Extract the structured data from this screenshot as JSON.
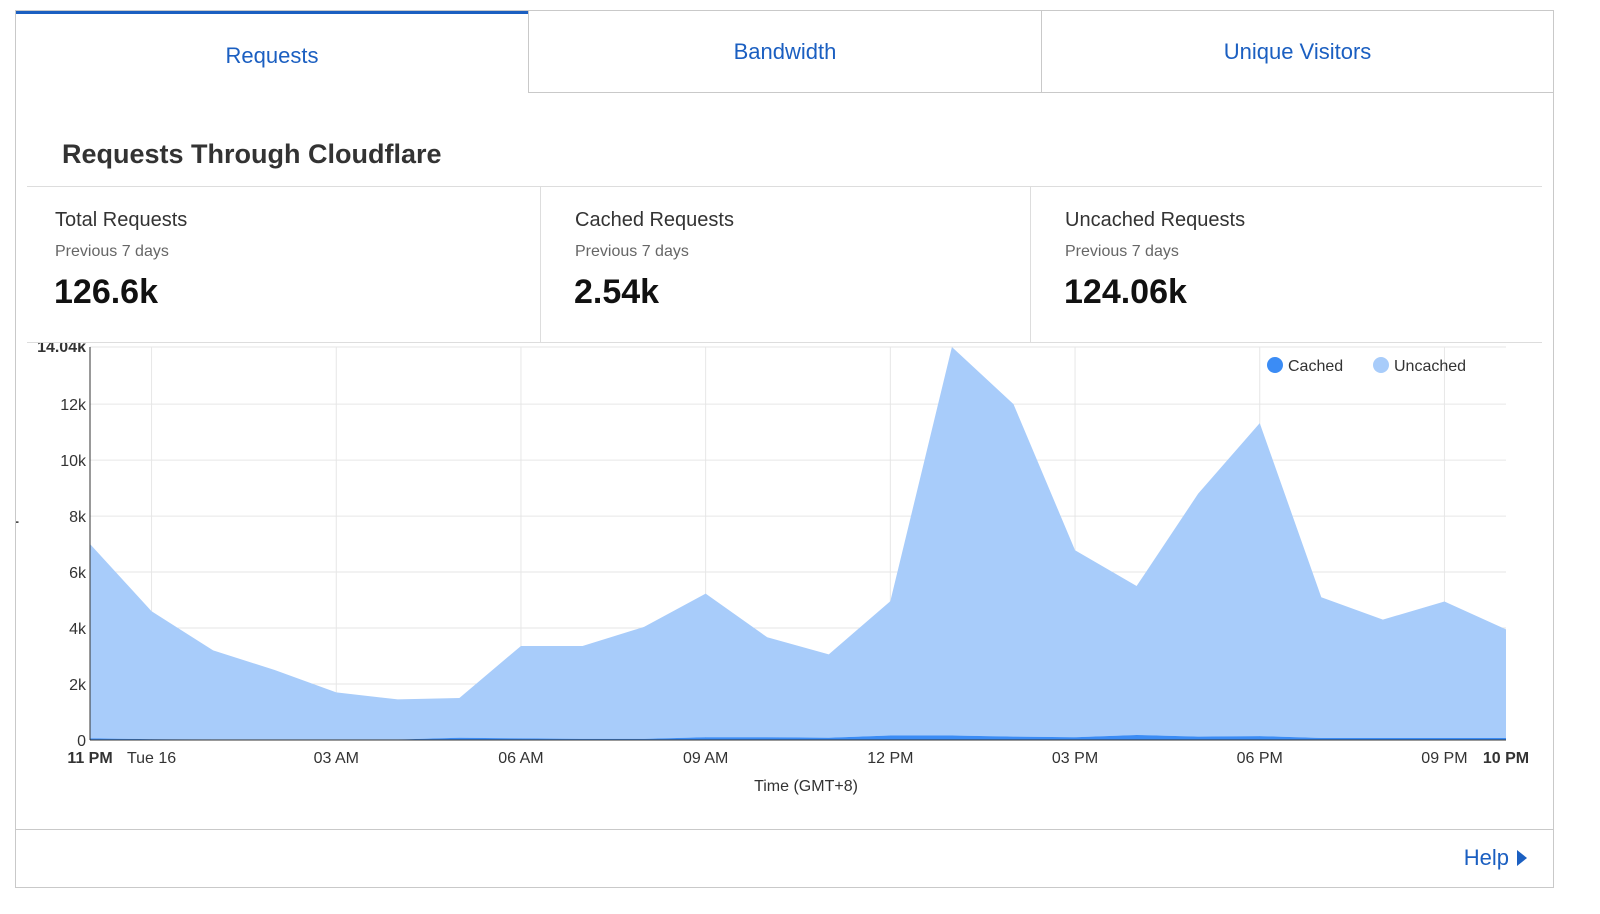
{
  "tabs": [
    {
      "label": "Requests"
    },
    {
      "label": "Bandwidth"
    },
    {
      "label": "Unique Visitors"
    }
  ],
  "heading": "Requests Through Cloudflare",
  "stats": [
    {
      "label": "Total Requests",
      "period": "Previous 7 days",
      "value": "126.6k"
    },
    {
      "label": "Cached Requests",
      "period": "Previous 7 days",
      "value": "2.54k"
    },
    {
      "label": "Uncached Requests",
      "period": "Previous 7 days",
      "value": "124.06k"
    }
  ],
  "help_label": "Help",
  "colors": {
    "accent": "#1b5fc1",
    "cached": "#3b8cf5",
    "uncached": "#a8ccfa"
  },
  "chart_data": {
    "type": "area",
    "stacked": true,
    "xlabel": "Time (GMT+8)",
    "ylabel": "Number of Requests",
    "ylim": [
      0,
      14040
    ],
    "yticks": [
      {
        "value": 0,
        "label": "0"
      },
      {
        "value": 2000,
        "label": "2k"
      },
      {
        "value": 4000,
        "label": "4k"
      },
      {
        "value": 6000,
        "label": "6k"
      },
      {
        "value": 8000,
        "label": "8k"
      },
      {
        "value": 10000,
        "label": "10k"
      },
      {
        "value": 12000,
        "label": "12k"
      },
      {
        "value": 14040,
        "label": "14.04k",
        "bold": true
      }
    ],
    "xticks": [
      {
        "hour": 0,
        "label": "11 PM",
        "bold": true
      },
      {
        "hour": 1,
        "label": "Tue 16"
      },
      {
        "hour": 4,
        "label": "03 AM"
      },
      {
        "hour": 7,
        "label": "06 AM"
      },
      {
        "hour": 10,
        "label": "09 AM"
      },
      {
        "hour": 13,
        "label": "12 PM"
      },
      {
        "hour": 16,
        "label": "03 PM"
      },
      {
        "hour": 19,
        "label": "06 PM"
      },
      {
        "hour": 22,
        "label": "09 PM"
      },
      {
        "hour": 23,
        "label": "10 PM",
        "bold": true
      }
    ],
    "x_hours": [
      0,
      1,
      2,
      3,
      4,
      5,
      6,
      7,
      8,
      9,
      10,
      11,
      12,
      13,
      14,
      15,
      16,
      17,
      18,
      19,
      20,
      21,
      22,
      23
    ],
    "series": [
      {
        "name": "Cached",
        "values": [
          60,
          30,
          20,
          20,
          20,
          20,
          80,
          60,
          40,
          40,
          100,
          100,
          80,
          160,
          160,
          120,
          100,
          180,
          120,
          140,
          70,
          70,
          70,
          70
        ]
      },
      {
        "name": "Uncached",
        "values": [
          6940,
          4570,
          3180,
          2480,
          1680,
          1430,
          1420,
          3300,
          3320,
          4000,
          5130,
          3570,
          2980,
          4800,
          13880,
          11880,
          6680,
          5320,
          8680,
          11180,
          5030,
          4230,
          4880,
          3880
        ]
      }
    ],
    "legend": "top-right",
    "grid": true
  }
}
